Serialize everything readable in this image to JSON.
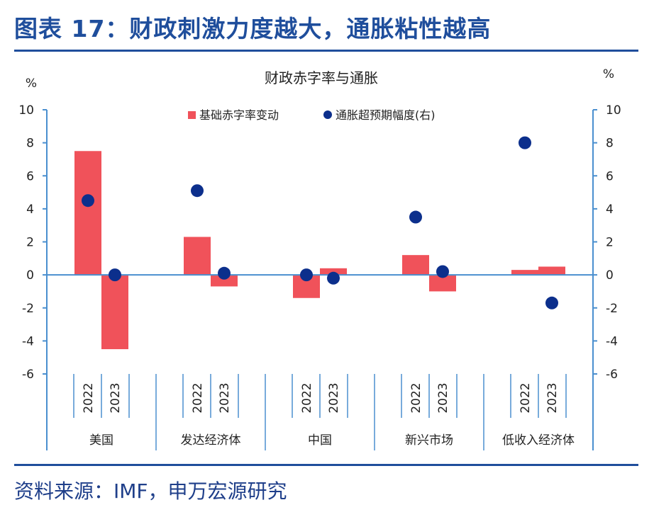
{
  "figure_title": "图表 17：财政刺激力度越大，通胀粘性越高",
  "source": "资料来源：IMF，申万宏源研究",
  "colors": {
    "bar": "#f0525a",
    "dot": "#0c2f8c",
    "axis": "#4a8fcf",
    "title": "#1f4e9c"
  },
  "chart_data": {
    "type": "bar",
    "title": "财政赤字率与通胀",
    "ylabel_left": "%",
    "ylabel_right": "%",
    "ylim": [
      -6,
      10
    ],
    "y2lim": [
      -6,
      10
    ],
    "yticks": [
      "10",
      "8",
      "6",
      "4",
      "2",
      "0",
      "-2",
      "-4",
      "-6"
    ],
    "y2ticks": [
      "10",
      "8",
      "6",
      "4",
      "2",
      "0",
      "-2",
      "-4",
      "-6"
    ],
    "groups": [
      "美国",
      "发达经济体",
      "中国",
      "新兴市场",
      "低收入经济体"
    ],
    "years": [
      "2022",
      "2023"
    ],
    "legend": "top",
    "grid": false,
    "series": [
      {
        "name": "基础赤字率变动",
        "kind": "bar",
        "axis": "left",
        "values": [
          [
            7.5,
            -4.5
          ],
          [
            2.3,
            -0.7
          ],
          [
            -1.4,
            0.4
          ],
          [
            1.2,
            -1.0
          ],
          [
            0.3,
            0.5
          ]
        ]
      },
      {
        "name": "通胀超预期幅度(右)",
        "kind": "scatter",
        "axis": "right",
        "values": [
          [
            4.5,
            0.0
          ],
          [
            5.1,
            0.1
          ],
          [
            0.0,
            -0.2
          ],
          [
            3.5,
            0.2
          ],
          [
            8.0,
            -1.7
          ]
        ]
      }
    ]
  }
}
